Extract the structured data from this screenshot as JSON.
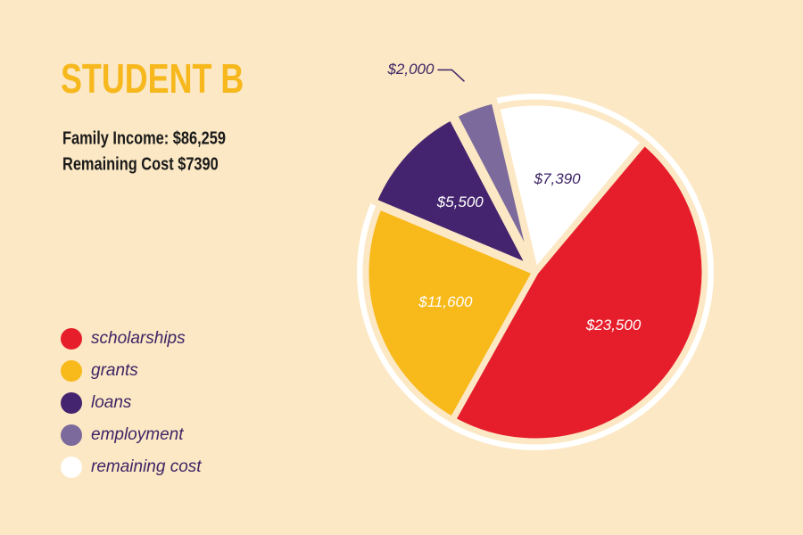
{
  "chart_data": {
    "type": "pie",
    "title": "STUDENT B",
    "subtitle": [
      "Family Income: $86,259",
      "Remaining Cost $7390"
    ],
    "categories": [
      "scholarships",
      "grants",
      "loans",
      "employment",
      "remaining cost"
    ],
    "values": [
      23500,
      11600,
      5500,
      2000,
      7390
    ],
    "value_labels": [
      "$23,500",
      "$11,600",
      "$5,500",
      "$2,000",
      "$7,390"
    ],
    "colors": [
      "#e61e2b",
      "#f8b91b",
      "#45246f",
      "#7b6a9b",
      "#ffffff"
    ]
  }
}
